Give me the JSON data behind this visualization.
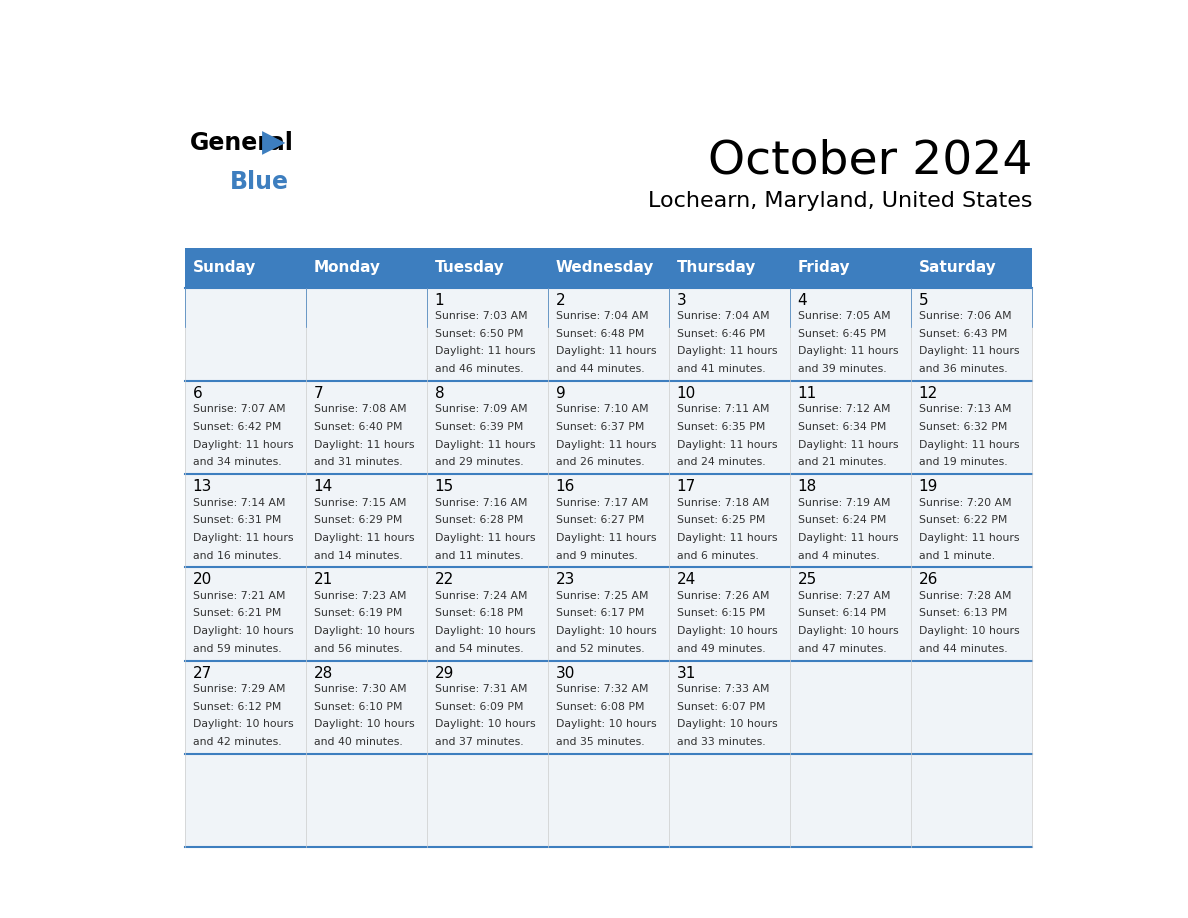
{
  "title": "October 2024",
  "subtitle": "Lochearn, Maryland, United States",
  "header_bg_color": "#3d7ebf",
  "header_text_color": "#ffffff",
  "cell_bg_color": "#f0f4f8",
  "border_color": "#3d7ebf",
  "day_names": [
    "Sunday",
    "Monday",
    "Tuesday",
    "Wednesday",
    "Thursday",
    "Friday",
    "Saturday"
  ],
  "days": [
    {
      "date": null,
      "sunrise": null,
      "sunset": null,
      "daylight": null
    },
    {
      "date": null,
      "sunrise": null,
      "sunset": null,
      "daylight": null
    },
    {
      "date": "1",
      "sunrise": "7:03 AM",
      "sunset": "6:50 PM",
      "daylight": "11 hours and 46 minutes"
    },
    {
      "date": "2",
      "sunrise": "7:04 AM",
      "sunset": "6:48 PM",
      "daylight": "11 hours and 44 minutes"
    },
    {
      "date": "3",
      "sunrise": "7:04 AM",
      "sunset": "6:46 PM",
      "daylight": "11 hours and 41 minutes"
    },
    {
      "date": "4",
      "sunrise": "7:05 AM",
      "sunset": "6:45 PM",
      "daylight": "11 hours and 39 minutes"
    },
    {
      "date": "5",
      "sunrise": "7:06 AM",
      "sunset": "6:43 PM",
      "daylight": "11 hours and 36 minutes"
    },
    {
      "date": "6",
      "sunrise": "7:07 AM",
      "sunset": "6:42 PM",
      "daylight": "11 hours and 34 minutes"
    },
    {
      "date": "7",
      "sunrise": "7:08 AM",
      "sunset": "6:40 PM",
      "daylight": "11 hours and 31 minutes"
    },
    {
      "date": "8",
      "sunrise": "7:09 AM",
      "sunset": "6:39 PM",
      "daylight": "11 hours and 29 minutes"
    },
    {
      "date": "9",
      "sunrise": "7:10 AM",
      "sunset": "6:37 PM",
      "daylight": "11 hours and 26 minutes"
    },
    {
      "date": "10",
      "sunrise": "7:11 AM",
      "sunset": "6:35 PM",
      "daylight": "11 hours and 24 minutes"
    },
    {
      "date": "11",
      "sunrise": "7:12 AM",
      "sunset": "6:34 PM",
      "daylight": "11 hours and 21 minutes"
    },
    {
      "date": "12",
      "sunrise": "7:13 AM",
      "sunset": "6:32 PM",
      "daylight": "11 hours and 19 minutes"
    },
    {
      "date": "13",
      "sunrise": "7:14 AM",
      "sunset": "6:31 PM",
      "daylight": "11 hours and 16 minutes"
    },
    {
      "date": "14",
      "sunrise": "7:15 AM",
      "sunset": "6:29 PM",
      "daylight": "11 hours and 14 minutes"
    },
    {
      "date": "15",
      "sunrise": "7:16 AM",
      "sunset": "6:28 PM",
      "daylight": "11 hours and 11 minutes"
    },
    {
      "date": "16",
      "sunrise": "7:17 AM",
      "sunset": "6:27 PM",
      "daylight": "11 hours and 9 minutes"
    },
    {
      "date": "17",
      "sunrise": "7:18 AM",
      "sunset": "6:25 PM",
      "daylight": "11 hours and 6 minutes"
    },
    {
      "date": "18",
      "sunrise": "7:19 AM",
      "sunset": "6:24 PM",
      "daylight": "11 hours and 4 minutes"
    },
    {
      "date": "19",
      "sunrise": "7:20 AM",
      "sunset": "6:22 PM",
      "daylight": "11 hours and 1 minute"
    },
    {
      "date": "20",
      "sunrise": "7:21 AM",
      "sunset": "6:21 PM",
      "daylight": "10 hours and 59 minutes"
    },
    {
      "date": "21",
      "sunrise": "7:23 AM",
      "sunset": "6:19 PM",
      "daylight": "10 hours and 56 minutes"
    },
    {
      "date": "22",
      "sunrise": "7:24 AM",
      "sunset": "6:18 PM",
      "daylight": "10 hours and 54 minutes"
    },
    {
      "date": "23",
      "sunrise": "7:25 AM",
      "sunset": "6:17 PM",
      "daylight": "10 hours and 52 minutes"
    },
    {
      "date": "24",
      "sunrise": "7:26 AM",
      "sunset": "6:15 PM",
      "daylight": "10 hours and 49 minutes"
    },
    {
      "date": "25",
      "sunrise": "7:27 AM",
      "sunset": "6:14 PM",
      "daylight": "10 hours and 47 minutes"
    },
    {
      "date": "26",
      "sunrise": "7:28 AM",
      "sunset": "6:13 PM",
      "daylight": "10 hours and 44 minutes"
    },
    {
      "date": "27",
      "sunrise": "7:29 AM",
      "sunset": "6:12 PM",
      "daylight": "10 hours and 42 minutes"
    },
    {
      "date": "28",
      "sunrise": "7:30 AM",
      "sunset": "6:10 PM",
      "daylight": "10 hours and 40 minutes"
    },
    {
      "date": "29",
      "sunrise": "7:31 AM",
      "sunset": "6:09 PM",
      "daylight": "10 hours and 37 minutes"
    },
    {
      "date": "30",
      "sunrise": "7:32 AM",
      "sunset": "6:08 PM",
      "daylight": "10 hours and 35 minutes"
    },
    {
      "date": "31",
      "sunrise": "7:33 AM",
      "sunset": "6:07 PM",
      "daylight": "10 hours and 33 minutes"
    }
  ]
}
